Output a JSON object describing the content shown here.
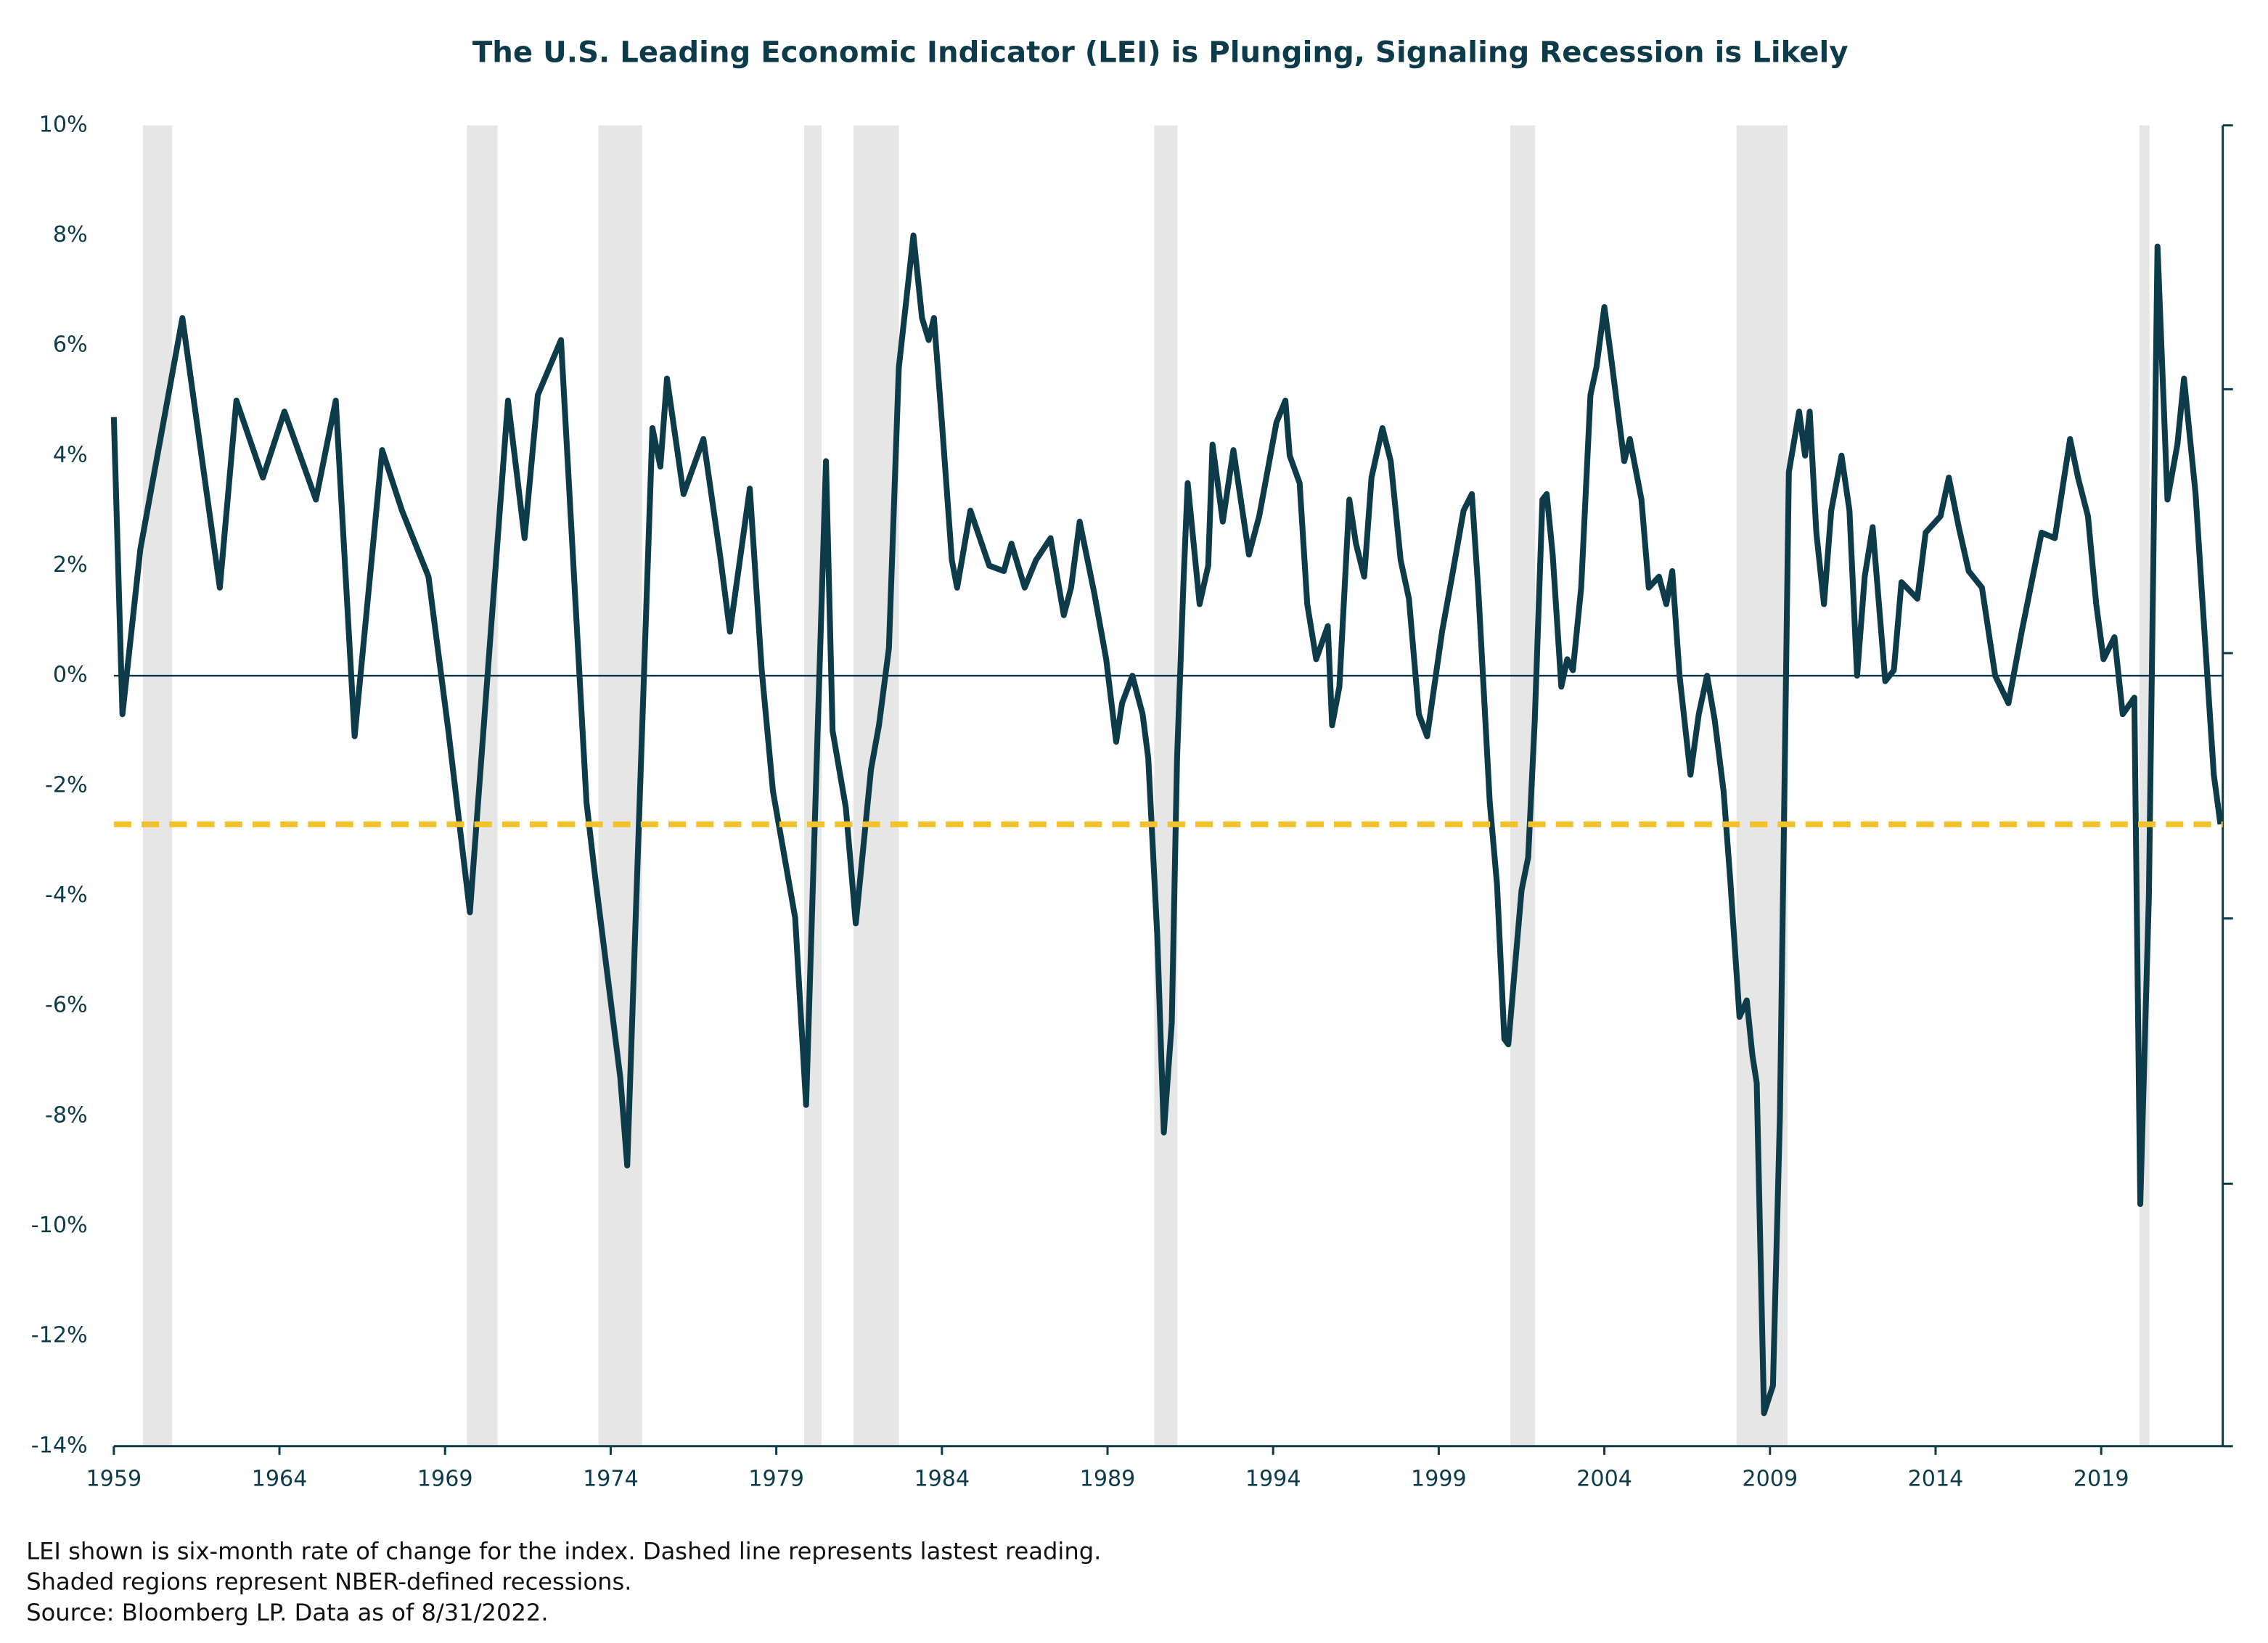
{
  "chart_data": {
    "type": "line",
    "title": "The U.S. Leading Economic Indicator (LEI) is Plunging, Signaling Recession is Likely",
    "notes": [
      "LEI shown is six-month rate of change for the index. Dashed line represents lastest reading.",
      "Shaded regions represent NBER-defined recessions.",
      "Source: Bloomberg LP. Data as of 8/31/2022."
    ],
    "xlim": [
      1959,
      2022.67
    ],
    "xticks": [
      1959,
      1964,
      1969,
      1974,
      1979,
      1984,
      1989,
      1994,
      1999,
      2004,
      2009,
      2014,
      2019
    ],
    "ylim": [
      -14,
      10
    ],
    "yticks": [
      {
        "value": 10,
        "label": "10%"
      },
      {
        "value": 8,
        "label": "8%"
      },
      {
        "value": 6,
        "label": "6%"
      },
      {
        "value": 4,
        "label": "4%"
      },
      {
        "value": 2,
        "label": "2%"
      },
      {
        "value": 0,
        "label": "0%"
      },
      {
        "value": -2,
        "label": "-2%"
      },
      {
        "value": -4,
        "label": "-4%"
      },
      {
        "value": -6,
        "label": "-6%"
      },
      {
        "value": -8,
        "label": "-8%"
      },
      {
        "value": -10,
        "label": "-10%"
      },
      {
        "value": -12,
        "label": "-12%"
      },
      {
        "value": -14,
        "label": "-14%"
      }
    ],
    "recessions": [
      [
        1959.88,
        1960.76
      ],
      [
        1969.66,
        1970.59
      ],
      [
        1973.63,
        1974.95
      ],
      [
        1979.84,
        1980.37
      ],
      [
        1981.33,
        1982.7
      ],
      [
        1990.41,
        1991.11
      ],
      [
        2001.16,
        2001.91
      ],
      [
        2007.99,
        2009.53
      ],
      [
        2020.15,
        2020.46
      ]
    ],
    "recession_color": "#e6e6e6",
    "latest_line_color": "#f2c12e",
    "x": [
      1959.0,
      1959.26,
      1959.8,
      1961.07,
      1962.2,
      1962.7,
      1963.5,
      1964.15,
      1965.1,
      1965.7,
      1966.27,
      1967.1,
      1967.7,
      1968.5,
      1969.1,
      1969.75,
      1970.9,
      1971.4,
      1971.8,
      1972.5,
      1973.27,
      1973.54,
      1974.29,
      1974.5,
      1975.26,
      1975.5,
      1975.7,
      1976.2,
      1976.8,
      1977.3,
      1977.6,
      1978.2,
      1978.56,
      1978.9,
      1979.57,
      1979.9,
      1980.5,
      1980.7,
      1981.1,
      1981.4,
      1981.86,
      1982.1,
      1982.4,
      1982.7,
      1983.14,
      1983.4,
      1983.6,
      1983.76,
      1984.0,
      1984.3,
      1984.46,
      1984.86,
      1985.43,
      1985.87,
      1986.1,
      1986.5,
      1986.84,
      1987.28,
      1987.68,
      1987.9,
      1988.16,
      1988.6,
      1988.96,
      1989.26,
      1989.44,
      1989.75,
      1990.06,
      1990.23,
      1990.5,
      1990.7,
      1990.94,
      1991.1,
      1991.3,
      1991.42,
      1991.78,
      1992.04,
      1992.17,
      1992.48,
      1992.8,
      1993.27,
      1993.58,
      1994.1,
      1994.37,
      1994.5,
      1994.8,
      1995.03,
      1995.3,
      1995.65,
      1995.78,
      1996.0,
      1996.3,
      1996.5,
      1996.75,
      1996.97,
      1997.3,
      1997.55,
      1997.85,
      1998.1,
      1998.4,
      1998.65,
      1999.1,
      1999.4,
      1999.75,
      2000.0,
      2000.2,
      2000.37,
      2000.54,
      2000.76,
      2000.98,
      2001.1,
      2001.5,
      2001.7,
      2001.9,
      2002.13,
      2002.26,
      2002.44,
      2002.7,
      2002.88,
      2003.05,
      2003.3,
      2003.58,
      2003.76,
      2004.0,
      2004.2,
      2004.6,
      2004.77,
      2005.12,
      2005.34,
      2005.65,
      2005.87,
      2006.05,
      2006.27,
      2006.6,
      2006.85,
      2007.1,
      2007.33,
      2007.6,
      2007.8,
      2008.08,
      2008.3,
      2008.47,
      2008.6,
      2008.82,
      2009.09,
      2009.3,
      2009.57,
      2009.88,
      2010.06,
      2010.2,
      2010.4,
      2010.63,
      2010.85,
      2011.16,
      2011.4,
      2011.63,
      2011.86,
      2012.1,
      2012.48,
      2012.74,
      2012.97,
      2013.45,
      2013.7,
      2014.15,
      2014.4,
      2014.7,
      2015.0,
      2015.4,
      2015.8,
      2016.2,
      2016.6,
      2017.2,
      2017.6,
      2018.06,
      2018.3,
      2018.6,
      2018.85,
      2019.07,
      2019.4,
      2019.65,
      2020.0,
      2020.18,
      2020.44,
      2020.7,
      2021.0,
      2021.3,
      2021.5,
      2021.85,
      2022.03,
      2022.4,
      2022.6
    ],
    "series": [
      {
        "name": "LEI",
        "color": "#0d3b4a",
        "values": [
          4.7,
          -0.7,
          2.3,
          6.5,
          1.6,
          5.0,
          3.6,
          4.8,
          3.2,
          5.0,
          -1.1,
          4.1,
          3.0,
          1.8,
          -1.0,
          -4.3,
          5.0,
          2.5,
          5.1,
          6.1,
          -2.3,
          -3.7,
          -7.3,
          -8.9,
          4.5,
          3.8,
          5.4,
          3.3,
          4.3,
          2.2,
          0.8,
          3.4,
          0.1,
          -2.1,
          -4.4,
          -7.8,
          3.9,
          -1.0,
          -2.4,
          -4.5,
          -1.7,
          -0.9,
          0.5,
          5.6,
          8.0,
          6.5,
          6.1,
          6.5,
          4.6,
          2.1,
          1.6,
          3.0,
          2.0,
          1.9,
          2.4,
          1.6,
          2.1,
          2.5,
          1.1,
          1.6,
          2.8,
          1.5,
          0.3,
          -1.2,
          -0.5,
          0.0,
          -0.7,
          -1.5,
          -4.7,
          -8.3,
          -6.3,
          -1.5,
          1.8,
          3.5,
          1.3,
          2.0,
          4.2,
          2.8,
          4.1,
          2.2,
          2.9,
          4.6,
          5.0,
          4.0,
          3.5,
          1.3,
          0.3,
          0.9,
          -0.9,
          -0.2,
          3.2,
          2.4,
          1.8,
          3.6,
          4.5,
          3.9,
          2.1,
          1.4,
          -0.7,
          -1.1,
          0.8,
          1.8,
          3.0,
          3.3,
          1.5,
          -0.4,
          -2.3,
          -3.8,
          -6.6,
          -6.7,
          -3.9,
          -3.3,
          -0.8,
          3.2,
          3.3,
          2.2,
          -0.2,
          0.3,
          0.1,
          1.6,
          5.1,
          5.6,
          6.7,
          5.8,
          3.9,
          4.3,
          3.2,
          1.6,
          1.8,
          1.3,
          1.9,
          0.0,
          -1.8,
          -0.7,
          0.0,
          -0.8,
          -2.1,
          -3.7,
          -6.2,
          -5.9,
          -6.9,
          -7.4,
          -13.4,
          -12.9,
          -8.0,
          3.7,
          4.8,
          4.0,
          4.8,
          2.6,
          1.3,
          3.0,
          4.0,
          3.0,
          0.0,
          1.8,
          2.7,
          -0.1,
          0.1,
          1.7,
          1.4,
          2.6,
          2.9,
          3.6,
          2.7,
          1.9,
          1.6,
          0.0,
          -0.5,
          0.8,
          2.6,
          2.5,
          4.3,
          3.6,
          2.9,
          1.3,
          0.3,
          0.7,
          -0.7,
          -0.4,
          -9.6,
          -4.0,
          7.8,
          3.2,
          4.2,
          5.4,
          3.3,
          1.6,
          -1.8,
          -2.7
        ]
      }
    ]
  }
}
